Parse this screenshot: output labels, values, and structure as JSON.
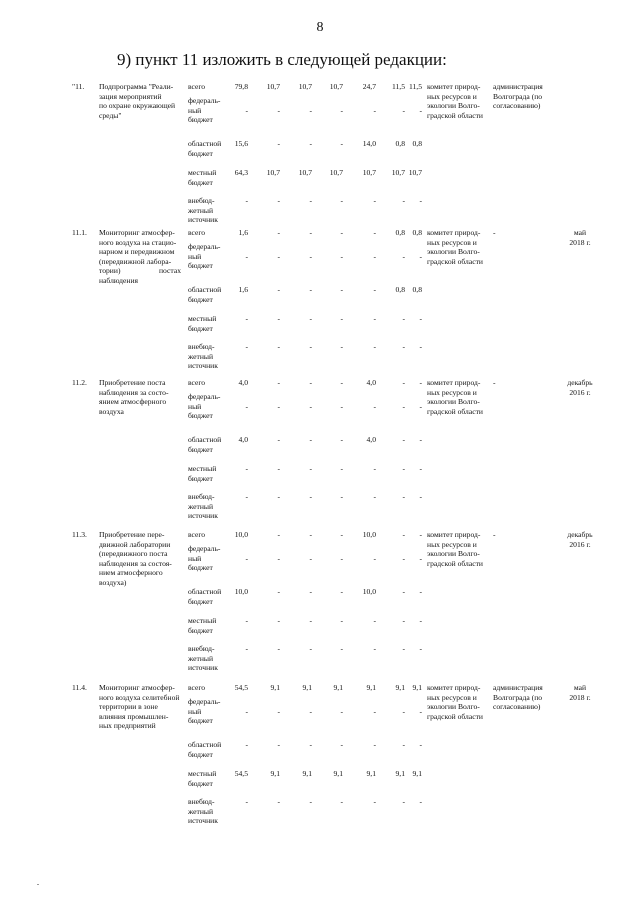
{
  "page_number": "8",
  "heading": "9) пункт 11 изложить в следующей редакции:",
  "blocks": [
    {
      "id": "\"11.",
      "title": "Подпрограмма \"Реали-\nзация мероприятий\nпо охране окружающей\nсреды\"",
      "committee": "комитет природ-\nных ресурсов и\nэкологии Волго-\nградской области",
      "admin": "администрация\nВолгограда (по\nсогласованию)",
      "date": "",
      "rows": [
        {
          "source": "всего",
          "values": [
            "79,8",
            "10,7",
            "10,7",
            "10,7",
            "24,7",
            "11,5",
            "11,5"
          ]
        },
        {
          "source": "федераль-\nный\nбюджет",
          "values": [
            "-",
            "-",
            "-",
            "-",
            "-",
            "-",
            "-"
          ]
        },
        {
          "source": "областной\nбюджет",
          "values": [
            "15,6",
            "-",
            "-",
            "-",
            "14,0",
            "0,8",
            "0,8"
          ]
        },
        {
          "source": "местный\nбюджет",
          "values": [
            "64,3",
            "10,7",
            "10,7",
            "10,7",
            "10,7",
            "10,7",
            "10,7"
          ]
        },
        {
          "source": "внебюд-\nжетный\nисточник",
          "values": [
            "-",
            "-",
            "-",
            "-",
            "-",
            "-",
            "-"
          ]
        }
      ]
    },
    {
      "id": "11.1.",
      "title": "Мониторинг атмосфер-\nного воздуха на стацио-\nнарном и передвижном\n(передвижной лабора-\nтории) постах наблюдения",
      "committee": "комитет природ-\nных ресурсов и\nэкологии Волго-\nградской области",
      "admin": "-",
      "date": "май\n2018 г.",
      "rows": [
        {
          "source": "всего",
          "values": [
            "1,6",
            "-",
            "-",
            "-",
            "-",
            "0,8",
            "0,8"
          ]
        },
        {
          "source": "федераль-\nный\nбюджет",
          "values": [
            "-",
            "-",
            "-",
            "-",
            "-",
            "-",
            "-"
          ]
        },
        {
          "source": "областной\nбюджет",
          "values": [
            "1,6",
            "-",
            "-",
            "-",
            "-",
            "0,8",
            "0,8"
          ]
        },
        {
          "source": "местный\nбюджет",
          "values": [
            "-",
            "-",
            "-",
            "-",
            "-",
            "-",
            "-"
          ]
        },
        {
          "source": "внебюд-\nжетный\nисточник",
          "values": [
            "-",
            "-",
            "-",
            "-",
            "-",
            "-",
            "-"
          ]
        }
      ]
    },
    {
      "id": "11.2.",
      "title": "Приобретение поста\nнаблюдения за состо-\nянием атмосферного\nвоздуха",
      "committee": "комитет природ-\nных ресурсов и\nэкологии Волго-\nградской области",
      "admin": "-",
      "date": "декабрь\n2016 г.",
      "rows": [
        {
          "source": "всего",
          "values": [
            "4,0",
            "-",
            "-",
            "-",
            "4,0",
            "-",
            "-"
          ]
        },
        {
          "source": "федераль-\nный\nбюджет",
          "values": [
            "-",
            "-",
            "-",
            "-",
            "-",
            "-",
            "-"
          ]
        },
        {
          "source": "областной\nбюджет",
          "values": [
            "4,0",
            "-",
            "-",
            "-",
            "4,0",
            "-",
            "-"
          ]
        },
        {
          "source": "местный\nбюджет",
          "values": [
            "-",
            "-",
            "-",
            "-",
            "-",
            "-",
            "-"
          ]
        },
        {
          "source": "внебюд-\nжетный\nисточник",
          "values": [
            "-",
            "-",
            "-",
            "-",
            "-",
            "-",
            "-"
          ]
        }
      ]
    },
    {
      "id": "11.3.",
      "title": "Приобретение пере-\nдвижной лаборатории\n(передвижного поста\nнаблюдения за состоя-\nнием атмосферного\nвоздуха)",
      "committee": "комитет природ-\nных ресурсов и\nэкологии Волго-\nградской области",
      "admin": "-",
      "date": "декабрь\n2016 г.",
      "rows": [
        {
          "source": "всего",
          "values": [
            "10,0",
            "-",
            "-",
            "-",
            "10,0",
            "-",
            "-"
          ]
        },
        {
          "source": "федераль-\nный\nбюджет",
          "values": [
            "-",
            "-",
            "-",
            "-",
            "-",
            "-",
            "-"
          ]
        },
        {
          "source": "областной\nбюджет",
          "values": [
            "10,0",
            "-",
            "-",
            "-",
            "10,0",
            "-",
            "-"
          ]
        },
        {
          "source": "местный\nбюджет",
          "values": [
            "-",
            "-",
            "-",
            "-",
            "-",
            "-",
            "-"
          ]
        },
        {
          "source": "внебюд-\nжетный\nисточник",
          "values": [
            "-",
            "-",
            "-",
            "-",
            "-",
            "-",
            "-"
          ]
        }
      ]
    },
    {
      "id": "11.4.",
      "title": "Мониторинг атмосфер-\nного воздуха селитебной\nтерритории в зоне\nвлияния промышлен-\nных предприятий",
      "committee": "комитет природ-\nных ресурсов и\nэкологии Волго-\nградской области",
      "admin": "администрация\nВолгограда (по\nсогласованию)",
      "date": "май\n2018 г.",
      "rows": [
        {
          "source": "всего",
          "values": [
            "54,5",
            "9,1",
            "9,1",
            "9,1",
            "9,1",
            "9,1",
            "9,1"
          ]
        },
        {
          "source": "федераль-\nный\nбюджет",
          "values": [
            "-",
            "-",
            "-",
            "-",
            "-",
            "-",
            "-"
          ]
        },
        {
          "source": "областной\nбюджет",
          "values": [
            "-",
            "-",
            "-",
            "-",
            "-",
            "-",
            "-"
          ]
        },
        {
          "source": "местный\nбюджет",
          "values": [
            "54,5",
            "9,1",
            "9,1",
            "9,1",
            "9,1",
            "9,1",
            "9,1"
          ]
        },
        {
          "source": "внебюд-\nжетный\nисточник",
          "values": [
            "-",
            "-",
            "-",
            "-",
            "-",
            "-",
            "-"
          ]
        }
      ]
    }
  ]
}
